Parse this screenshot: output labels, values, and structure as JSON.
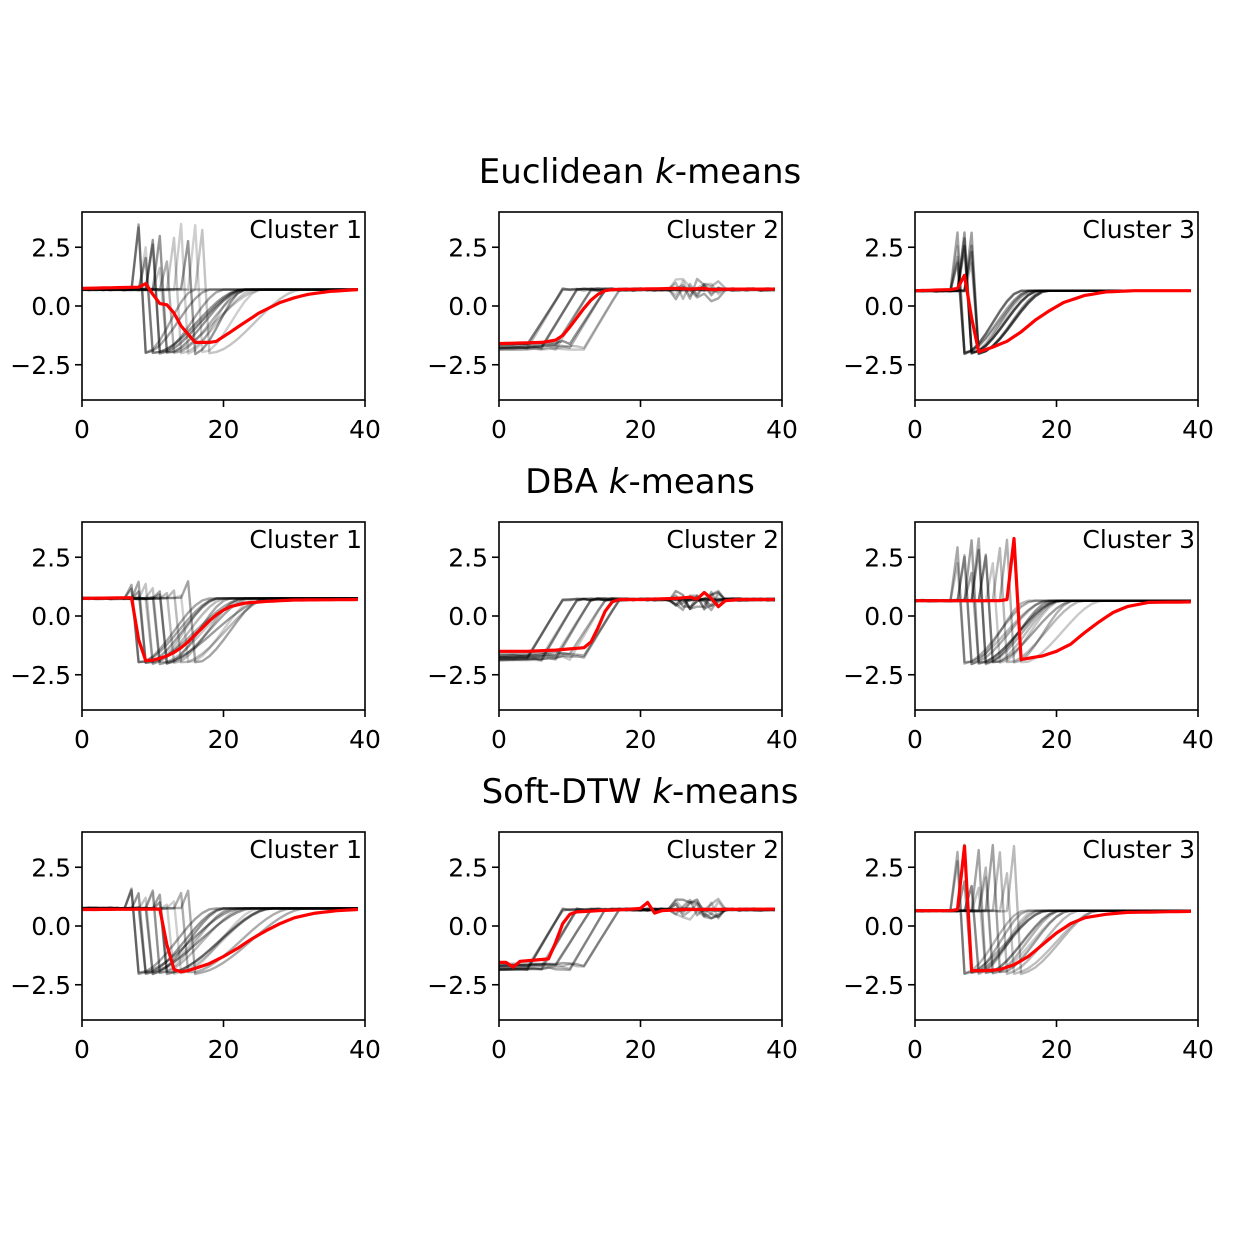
{
  "chart_data": {
    "type": "line",
    "x_range": [
      0,
      39
    ],
    "xlim": [
      0,
      40
    ],
    "ylim": [
      -4,
      4
    ],
    "xticks": [
      0,
      20,
      40
    ],
    "xtick_labels": [
      "0",
      "20",
      "40"
    ],
    "yticks": [
      2.5,
      0.0,
      -2.5
    ],
    "ytick_labels": [
      "2.5",
      "0.0",
      "−2.5"
    ],
    "grid": false,
    "member_color": "#000000",
    "barycenter_color": "#ff0000",
    "rows": [
      {
        "title_prefix": "Euclidean ",
        "title_italic": "k",
        "title_suffix": "-means",
        "clusters": [
          {
            "label": "Cluster 1",
            "members": {
              "base_level": 0.7,
              "spike_height": 3.5,
              "spike_steps": [
                8,
                9,
                10,
                11,
                12,
                13,
                14,
                15,
                16,
                17
              ],
              "dip_level": -2.0,
              "recovery": [
                7,
                14
              ]
            },
            "barycenter": [
              [
                0,
                0.75
              ],
              [
                8,
                0.8
              ],
              [
                9,
                0.95
              ],
              [
                10,
                0.5
              ],
              [
                11,
                0.1
              ],
              [
                12,
                0.05
              ],
              [
                13,
                -0.3
              ],
              [
                14,
                -0.85
              ],
              [
                15,
                -1.2
              ],
              [
                16,
                -1.55
              ],
              [
                17,
                -1.55
              ],
              [
                18,
                -1.55
              ],
              [
                19,
                -1.5
              ],
              [
                20,
                -1.3
              ],
              [
                21,
                -1.1
              ],
              [
                22,
                -0.9
              ],
              [
                23,
                -0.7
              ],
              [
                24,
                -0.5
              ],
              [
                25,
                -0.3
              ],
              [
                26,
                -0.15
              ],
              [
                27,
                0.0
              ],
              [
                28,
                0.15
              ],
              [
                30,
                0.35
              ],
              [
                32,
                0.5
              ],
              [
                35,
                0.62
              ],
              [
                39,
                0.7
              ]
            ]
          },
          {
            "label": "Cluster 2",
            "members": {
              "base_level": -1.6,
              "rise_steps": [
                6,
                8,
                10,
                12,
                14
              ],
              "top_level": 0.7,
              "wiggle_range": [
                25,
                31
              ]
            },
            "barycenter": [
              [
                0,
                -1.6
              ],
              [
                6,
                -1.55
              ],
              [
                8,
                -1.45
              ],
              [
                9,
                -1.25
              ],
              [
                10,
                -0.9
              ],
              [
                11,
                -0.5
              ],
              [
                12,
                -0.1
              ],
              [
                13,
                0.25
              ],
              [
                14,
                0.5
              ],
              [
                15,
                0.65
              ],
              [
                16,
                0.7
              ],
              [
                20,
                0.72
              ],
              [
                25,
                0.75
              ],
              [
                27,
                0.72
              ],
              [
                29,
                0.75
              ],
              [
                30,
                0.7
              ],
              [
                33,
                0.72
              ],
              [
                39,
                0.72
              ]
            ]
          },
          {
            "label": "Cluster 3",
            "members": {
              "base_level": 0.65,
              "spike_height": 3.8,
              "spike_steps": [
                6,
                7,
                8
              ],
              "dip_level": -2.0,
              "recovery": [
                8,
                10
              ]
            },
            "barycenter": [
              [
                0,
                0.65
              ],
              [
                5,
                0.7
              ],
              [
                6,
                0.75
              ],
              [
                7,
                1.3
              ],
              [
                8,
                -0.5
              ],
              [
                9,
                -1.95
              ],
              [
                10,
                -1.85
              ],
              [
                11,
                -1.75
              ],
              [
                13,
                -1.5
              ],
              [
                15,
                -1.1
              ],
              [
                17,
                -0.6
              ],
              [
                19,
                -0.2
              ],
              [
                21,
                0.15
              ],
              [
                24,
                0.45
              ],
              [
                27,
                0.6
              ],
              [
                31,
                0.65
              ],
              [
                39,
                0.65
              ]
            ]
          }
        ]
      },
      {
        "title_prefix": "DBA ",
        "title_italic": "k",
        "title_suffix": "-means",
        "clusters": [
          {
            "label": "Cluster 1",
            "members": {
              "base_level": 0.75,
              "spike_height": 1.6,
              "spike_steps": [
                7,
                8,
                9,
                10,
                11,
                12,
                13,
                14,
                15
              ],
              "dip_level": -2.0,
              "recovery": [
                9,
                16
              ]
            },
            "barycenter": [
              [
                0,
                0.75
              ],
              [
                7,
                0.78
              ],
              [
                8,
                -1.0
              ],
              [
                9,
                -1.9
              ],
              [
                10,
                -1.88
              ],
              [
                11,
                -1.8
              ],
              [
                12,
                -1.7
              ],
              [
                13,
                -1.55
              ],
              [
                14,
                -1.35
              ],
              [
                15,
                -1.1
              ],
              [
                16,
                -0.8
              ],
              [
                17,
                -0.5
              ],
              [
                18,
                -0.2
              ],
              [
                19,
                0.05
              ],
              [
                20,
                0.25
              ],
              [
                21,
                0.4
              ],
              [
                23,
                0.55
              ],
              [
                26,
                0.62
              ],
              [
                30,
                0.68
              ],
              [
                39,
                0.7
              ]
            ]
          },
          {
            "label": "Cluster 2",
            "members": {
              "base_level": -1.6,
              "rise_steps": [
                6,
                8,
                10,
                12,
                14
              ],
              "top_level": 0.7,
              "wiggle_range": [
                25,
                31
              ]
            },
            "barycenter": [
              [
                0,
                -1.5
              ],
              [
                4,
                -1.5
              ],
              [
                8,
                -1.45
              ],
              [
                12,
                -1.35
              ],
              [
                13,
                -1.1
              ],
              [
                14,
                -0.5
              ],
              [
                15,
                0.2
              ],
              [
                16,
                0.6
              ],
              [
                17,
                0.7
              ],
              [
                20,
                0.7
              ],
              [
                25,
                0.75
              ],
              [
                27,
                0.8
              ],
              [
                28,
                0.72
              ],
              [
                29,
                1.0
              ],
              [
                30,
                0.75
              ],
              [
                31,
                0.4
              ],
              [
                32,
                0.65
              ],
              [
                34,
                0.7
              ],
              [
                39,
                0.7
              ]
            ]
          },
          {
            "label": "Cluster 3",
            "members": {
              "base_level": 0.65,
              "spike_height": 3.6,
              "spike_steps": [
                6,
                7,
                8,
                9,
                10,
                11,
                12,
                13,
                14
              ],
              "dip_level": -2.0,
              "recovery": [
                8,
                12
              ]
            },
            "barycenter": [
              [
                0,
                0.65
              ],
              [
                12,
                0.65
              ],
              [
                13,
                0.7
              ],
              [
                14,
                3.3
              ],
              [
                15,
                -1.85
              ],
              [
                16,
                -1.8
              ],
              [
                18,
                -1.7
              ],
              [
                20,
                -1.5
              ],
              [
                22,
                -1.2
              ],
              [
                24,
                -0.7
              ],
              [
                26,
                -0.25
              ],
              [
                28,
                0.15
              ],
              [
                30,
                0.4
              ],
              [
                33,
                0.58
              ],
              [
                39,
                0.6
              ]
            ]
          }
        ]
      },
      {
        "title_prefix": "Soft-DTW ",
        "title_italic": "k",
        "title_suffix": "-means",
        "clusters": [
          {
            "label": "Cluster 1",
            "members": {
              "base_level": 0.75,
              "spike_height": 1.6,
              "spike_steps": [
                7,
                8,
                9,
                10,
                11,
                12,
                13,
                14,
                15
              ],
              "dip_level": -2.0,
              "recovery": [
                9,
                16
              ]
            },
            "barycenter": [
              [
                0,
                0.7
              ],
              [
                11,
                0.72
              ],
              [
                12,
                -0.8
              ],
              [
                13,
                -1.85
              ],
              [
                14,
                -1.95
              ],
              [
                15,
                -1.9
              ],
              [
                16,
                -1.8
              ],
              [
                18,
                -1.6
              ],
              [
                20,
                -1.3
              ],
              [
                22,
                -0.95
              ],
              [
                24,
                -0.55
              ],
              [
                26,
                -0.2
              ],
              [
                28,
                0.1
              ],
              [
                30,
                0.35
              ],
              [
                33,
                0.55
              ],
              [
                36,
                0.65
              ],
              [
                39,
                0.7
              ]
            ]
          },
          {
            "label": "Cluster 2",
            "members": {
              "base_level": -1.6,
              "rise_steps": [
                6,
                8,
                10,
                12,
                14
              ],
              "top_level": 0.7,
              "wiggle_range": [
                25,
                31
              ]
            },
            "barycenter": [
              [
                0,
                -1.55
              ],
              [
                1,
                -1.55
              ],
              [
                2,
                -1.75
              ],
              [
                3,
                -1.5
              ],
              [
                5,
                -1.45
              ],
              [
                7,
                -1.4
              ],
              [
                8,
                -0.7
              ],
              [
                9,
                0.1
              ],
              [
                10,
                0.5
              ],
              [
                11,
                0.6
              ],
              [
                14,
                0.65
              ],
              [
                18,
                0.7
              ],
              [
                20,
                0.75
              ],
              [
                21,
                1.0
              ],
              [
                22,
                0.55
              ],
              [
                23,
                0.65
              ],
              [
                26,
                0.7
              ],
              [
                39,
                0.72
              ]
            ]
          },
          {
            "label": "Cluster 3",
            "members": {
              "base_level": 0.65,
              "spike_height": 3.6,
              "spike_steps": [
                6,
                7,
                8,
                9,
                10,
                11,
                12,
                13,
                14
              ],
              "dip_level": -2.0,
              "recovery": [
                8,
                12
              ]
            },
            "barycenter": [
              [
                0,
                0.65
              ],
              [
                5,
                0.65
              ],
              [
                6,
                0.7
              ],
              [
                7,
                3.4
              ],
              [
                8,
                -1.9
              ],
              [
                10,
                -1.9
              ],
              [
                12,
                -1.85
              ],
              [
                14,
                -1.65
              ],
              [
                16,
                -1.3
              ],
              [
                18,
                -0.8
              ],
              [
                20,
                -0.3
              ],
              [
                22,
                0.1
              ],
              [
                24,
                0.35
              ],
              [
                27,
                0.5
              ],
              [
                30,
                0.58
              ],
              [
                39,
                0.62
              ]
            ]
          }
        ]
      }
    ]
  }
}
